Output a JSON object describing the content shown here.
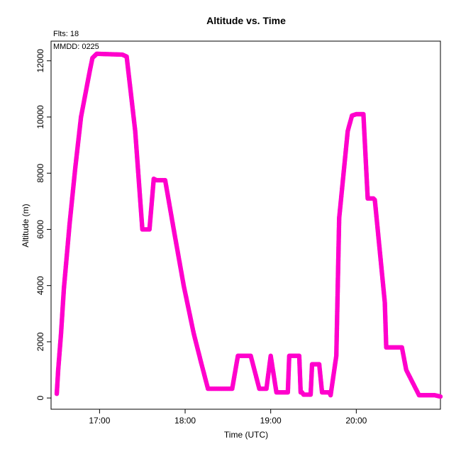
{
  "chart_data": {
    "type": "scatter",
    "title": "Altitude  vs. Time",
    "subtitle": "Flts: 18",
    "annotation": "MMDD: 0225",
    "xlabel": "Time (UTC)",
    "ylabel": "Altitude (m)",
    "xlim": [
      "16:26",
      "20:59"
    ],
    "ylim": [
      -400,
      12700
    ],
    "x_ticks": [
      "17:00",
      "18:00",
      "19:00",
      "20:00"
    ],
    "y_ticks": [
      0,
      2000,
      4000,
      6000,
      8000,
      10000,
      12000
    ],
    "marker_color": "#ff00cc",
    "series": [
      {
        "x": [
          "16:30",
          "16:31",
          "16:33",
          "16:35",
          "16:39",
          "16:43",
          "16:47",
          "16:50",
          "16:53",
          "16:55",
          "16:58",
          "17:16",
          "17:19",
          "17:25",
          "17:30",
          "17:35",
          "17:38",
          "17:40",
          "17:46",
          "17:52",
          "17:59",
          "18:06",
          "18:11",
          "18:16",
          "18:26",
          "18:33",
          "18:37",
          "18:41",
          "18:46",
          "18:52",
          "18:57",
          "19:00",
          "19:04",
          "19:07",
          "19:12",
          "19:13",
          "19:15",
          "19:20",
          "19:21",
          "19:22",
          "19:23",
          "19:28",
          "19:29",
          "19:33",
          "19:34",
          "19:36",
          "19:41",
          "19:42",
          "19:46",
          "19:48",
          "19:54",
          "19:57",
          "20:00",
          "20:05",
          "20:08",
          "20:09",
          "20:12",
          "20:13",
          "20:20",
          "20:21",
          "20:22",
          "20:24",
          "20:28",
          "20:32",
          "20:35",
          "20:44",
          "20:46",
          "20:50",
          "20:55",
          "20:59"
        ],
        "y": [
          150,
          1000,
          2300,
          3900,
          6200,
          8200,
          10000,
          10800,
          11600,
          12100,
          12250,
          12220,
          12150,
          9500,
          6000,
          6000,
          7800,
          7750,
          7750,
          6000,
          4000,
          2300,
          1300,
          330,
          330,
          330,
          1500,
          1500,
          1500,
          330,
          330,
          1500,
          200,
          200,
          200,
          1500,
          1500,
          1500,
          200,
          200,
          120,
          120,
          1200,
          1200,
          1200,
          200,
          200,
          100,
          1500,
          6400,
          9500,
          10050,
          10100,
          10100,
          7100,
          7100,
          7100,
          7050,
          3400,
          1800,
          1800,
          1800,
          1800,
          1800,
          1000,
          100,
          100,
          100,
          100,
          50
        ]
      }
    ]
  }
}
